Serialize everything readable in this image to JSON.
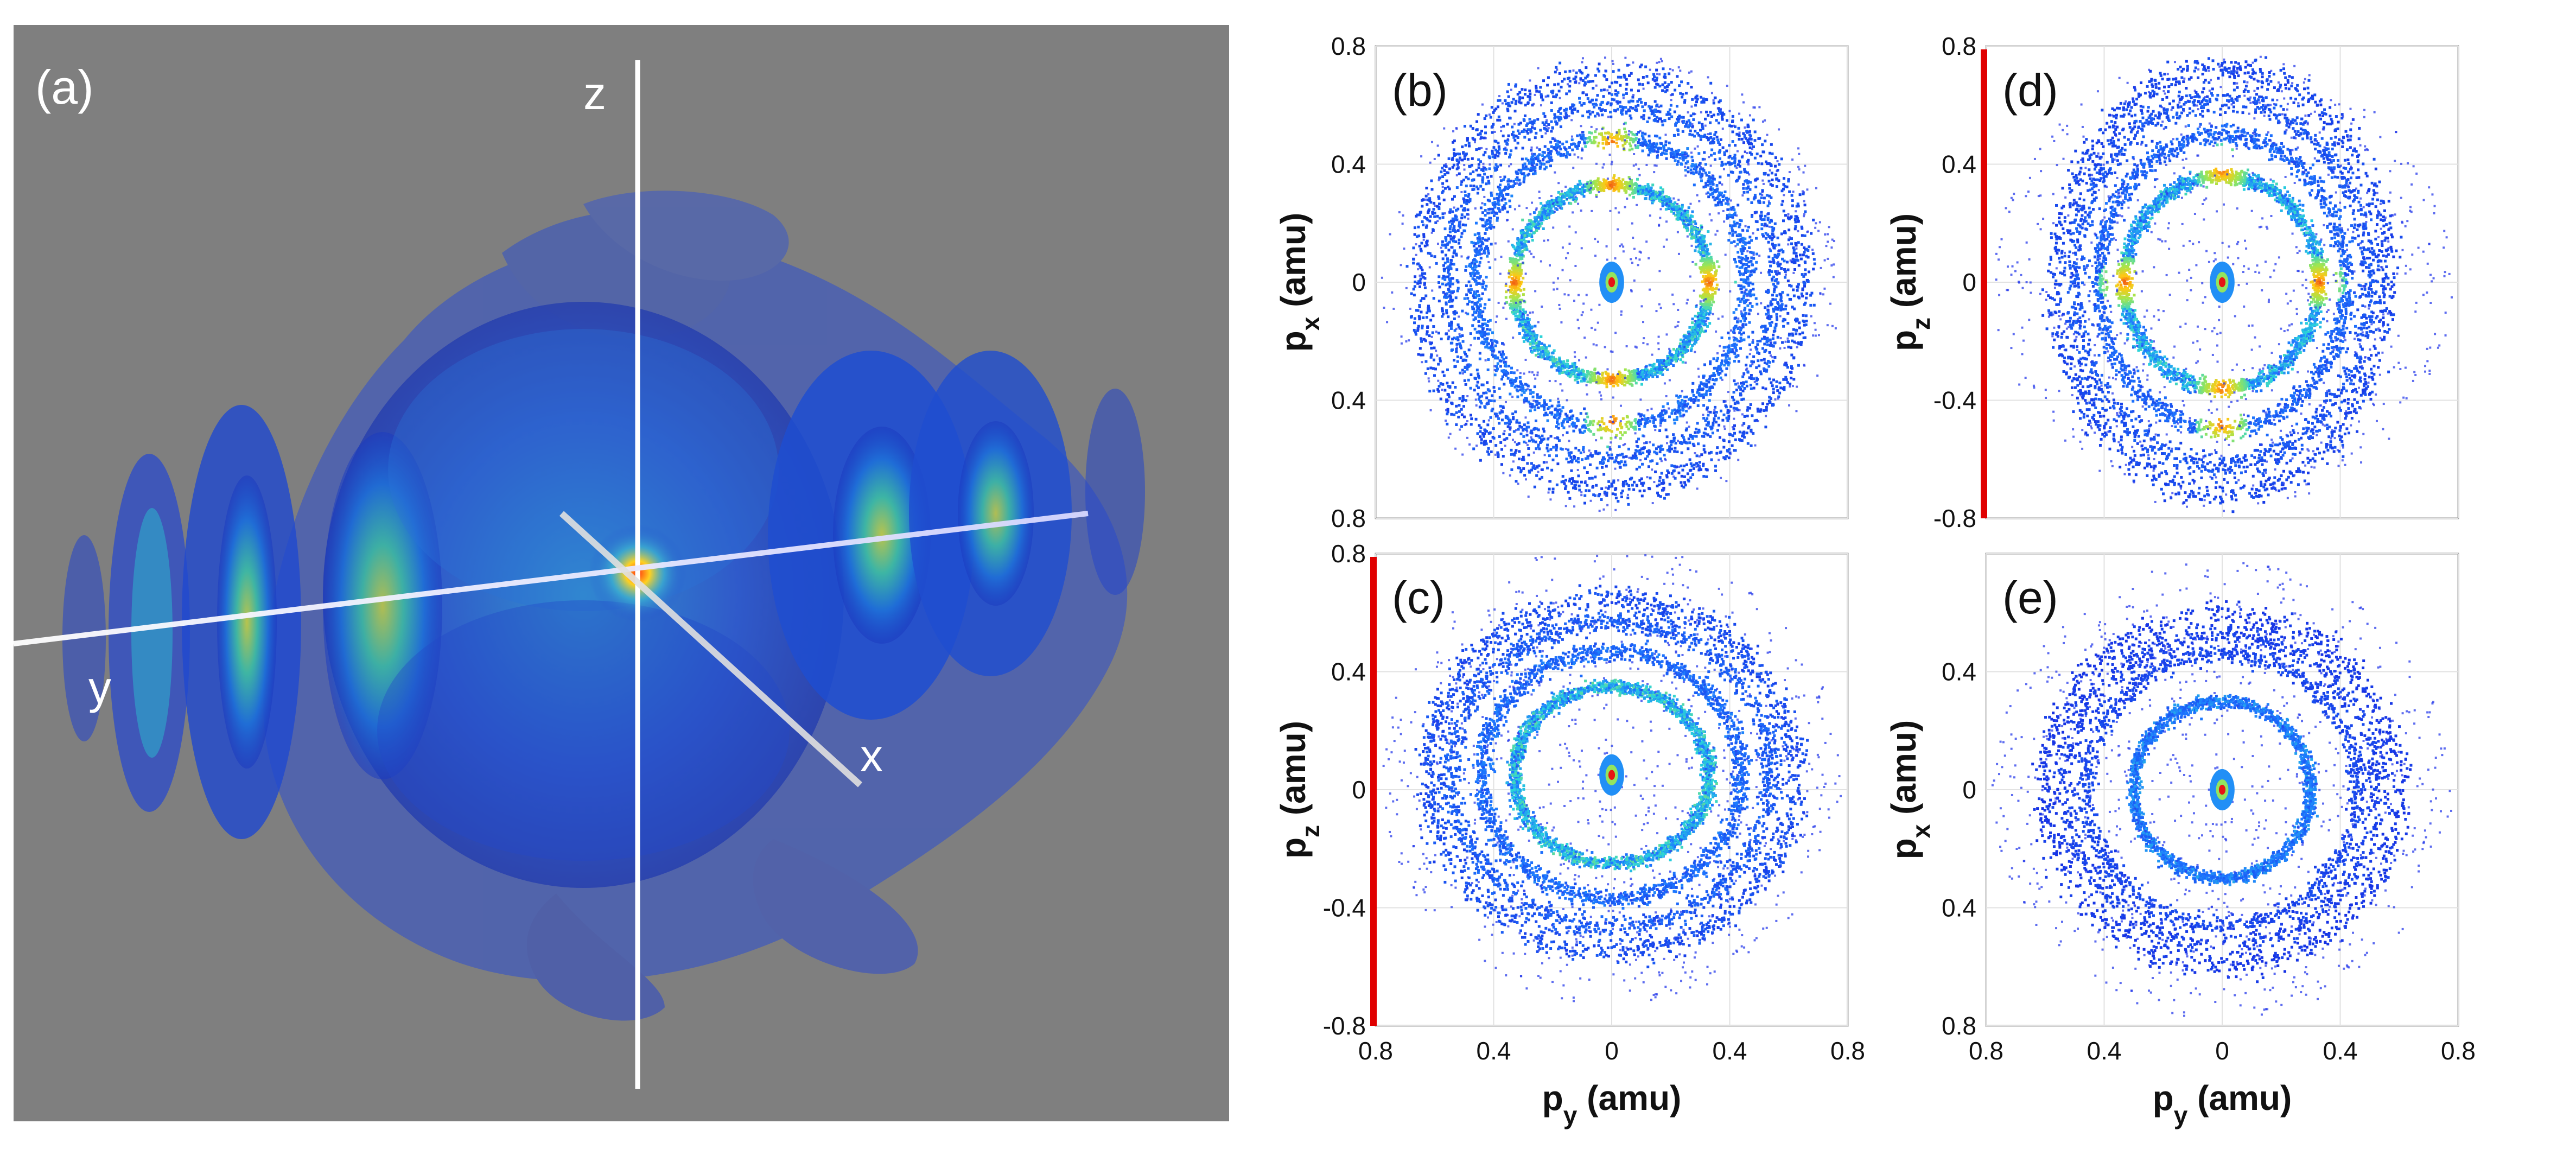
{
  "panel_a": {
    "label": "(a)",
    "axis_labels": {
      "x": "x",
      "y": "y",
      "z": "z"
    },
    "colors": {
      "background": "#7f7f7f",
      "shell": "#1f3fd0",
      "core": "#ff5010"
    }
  },
  "chart_data": [
    {
      "id": "b",
      "type": "scatter",
      "label": "(b)",
      "xlabel_main": "p",
      "xlabel_sub": "y",
      "xlabel_unit": " (amu)",
      "ylabel_main": "p",
      "ylabel_sub": "x",
      "ylabel_unit": " (amu)",
      "xlim": [
        -0.8,
        0.8
      ],
      "ylim": [
        -0.8,
        0.8
      ],
      "xticks": [
        -0.8,
        -0.4,
        0,
        0.4,
        0.8
      ],
      "xtick_labels": [
        "",
        "",
        "",
        "",
        ""
      ],
      "yticks": [
        0.8,
        0.4,
        0,
        -0.4,
        -0.8
      ],
      "ytick_labels": [
        "0.8",
        "0.4",
        "0",
        "0.4",
        "0.8"
      ],
      "grid": true,
      "red_left_bar": false,
      "rings": [
        {
          "radius_x": 0.33,
          "radius_y": 0.33,
          "intensity": 0.9
        },
        {
          "radius_x": 0.46,
          "radius_y": 0.49,
          "intensity": 0.55
        },
        {
          "radius_x": 0.56,
          "radius_y": 0.6,
          "intensity": 0.45
        },
        {
          "radius_x": 0.65,
          "radius_y": 0.7,
          "intensity": 0.35
        }
      ],
      "hotspots": [
        [
          0,
          0.33
        ],
        [
          0,
          -0.33
        ],
        [
          -0.33,
          0
        ],
        [
          0.33,
          0
        ],
        [
          0,
          0.47
        ],
        [
          0,
          -0.47
        ]
      ],
      "center": [
        0,
        0
      ]
    },
    {
      "id": "d",
      "type": "scatter",
      "label": "(d)",
      "xlabel_main": "",
      "xlabel_sub": "",
      "xlabel_unit": "",
      "ylabel_main": "p",
      "ylabel_sub": "z",
      "ylabel_unit": " (amu)",
      "xlim": [
        -0.8,
        0.8
      ],
      "ylim": [
        -0.8,
        0.8
      ],
      "xticks": [
        -0.8,
        -0.4,
        0,
        0.4,
        0.8
      ],
      "xtick_labels": [
        "",
        "",
        "",
        "",
        ""
      ],
      "yticks": [
        0.8,
        0.4,
        0,
        -0.4,
        -0.8
      ],
      "ytick_labels": [
        "0.8",
        "0.4",
        "0",
        "-0.4",
        "-0.8"
      ],
      "grid": true,
      "red_left_bar": true,
      "rings": [
        {
          "radius_x": 0.33,
          "radius_y": 0.36,
          "intensity": 0.85
        },
        {
          "radius_x": 0.42,
          "radius_y": 0.5,
          "intensity": 0.5
        },
        {
          "radius_x": 0.5,
          "radius_y": 0.62,
          "intensity": 0.4
        },
        {
          "radius_x": 0.56,
          "radius_y": 0.72,
          "intensity": 0.3
        }
      ],
      "hotspots": [
        [
          0,
          0.38
        ],
        [
          0,
          -0.36
        ],
        [
          -0.33,
          0
        ],
        [
          0.33,
          0
        ],
        [
          0,
          -0.48
        ]
      ],
      "center": [
        0,
        0
      ]
    },
    {
      "id": "c",
      "type": "scatter",
      "label": "(c)",
      "xlabel_main": "p",
      "xlabel_sub": "y",
      "xlabel_unit": " (amu)",
      "ylabel_main": "p",
      "ylabel_sub": "z",
      "ylabel_unit": " (amu)",
      "xlim": [
        -0.8,
        0.8
      ],
      "ylim": [
        -0.8,
        0.8
      ],
      "xticks": [
        -0.8,
        -0.4,
        0,
        0.4,
        0.8
      ],
      "xtick_labels": [
        "0.8",
        "0.4",
        "0",
        "0.4",
        "0.8"
      ],
      "yticks": [
        0.8,
        0.4,
        0,
        -0.4,
        -0.8
      ],
      "ytick_labels": [
        "0.8",
        "0.4",
        "0",
        "-0.4",
        "-0.8"
      ],
      "grid": true,
      "red_left_bar": true,
      "rings": [
        {
          "radius_x": 0.33,
          "radius_y": 0.3,
          "intensity": 0.9
        },
        {
          "radius_x": 0.44,
          "radius_y": 0.42,
          "intensity": 0.55
        },
        {
          "radius_x": 0.54,
          "radius_y": 0.52,
          "intensity": 0.45
        },
        {
          "radius_x": 0.62,
          "radius_y": 0.6,
          "intensity": 0.35
        }
      ],
      "hotspots": [],
      "center": [
        0,
        0.05
      ]
    },
    {
      "id": "e",
      "type": "scatter",
      "label": "(e)",
      "xlabel_main": "p",
      "xlabel_sub": "y",
      "xlabel_unit": " (amu)",
      "ylabel_main": "p",
      "ylabel_sub": "x",
      "ylabel_unit": " (amu)",
      "xlim": [
        -0.8,
        0.8
      ],
      "ylim": [
        -0.8,
        0.8
      ],
      "xticks": [
        -0.8,
        -0.4,
        0,
        0.4,
        0.8
      ],
      "xtick_labels": [
        "0.8",
        "0.4",
        "0",
        "0.4",
        "0.8"
      ],
      "yticks": [
        0.8,
        0.4,
        0,
        -0.4,
        -0.8
      ],
      "ytick_labels": [
        "",
        "0.4",
        "0",
        "0.4",
        "0.8"
      ],
      "grid": true,
      "red_left_bar": false,
      "rings": [
        {
          "radius_x": 0.3,
          "radius_y": 0.3,
          "intensity": 0.65
        },
        {
          "radius_x": 0.46,
          "radius_y": 0.46,
          "intensity": 0.3
        },
        {
          "radius_x": 0.53,
          "radius_y": 0.53,
          "intensity": 0.25
        },
        {
          "radius_x": 0.6,
          "radius_y": 0.6,
          "intensity": 0.2
        }
      ],
      "hotspots": [],
      "center": [
        0,
        0
      ]
    }
  ]
}
